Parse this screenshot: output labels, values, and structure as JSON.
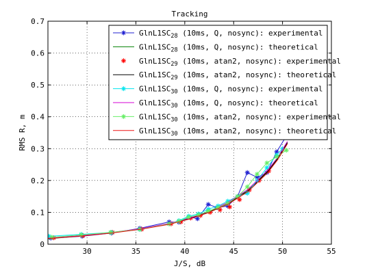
{
  "chart_data": {
    "type": "line",
    "title": "Tracking",
    "xlabel": "J/S, dB",
    "ylabel": "RMS R, m",
    "xlim": [
      26,
      55
    ],
    "ylim": [
      0,
      0.7
    ],
    "xticks": [
      30,
      35,
      40,
      45,
      50,
      55
    ],
    "yticks": [
      0,
      0.1,
      0.2,
      0.3,
      0.4,
      0.5,
      0.6,
      0.7
    ],
    "xtick_labels": [
      "30",
      "35",
      "40",
      "45",
      "50",
      "55"
    ],
    "ytick_labels": [
      "0",
      "0.1",
      "0.2",
      "0.3",
      "0.4",
      "0.5",
      "0.6",
      "0.7"
    ],
    "grid": true,
    "legend_position": "top-right",
    "series": [
      {
        "name_main": "GlnL1SC",
        "name_sub": "28",
        "name_rest": " (10ms, Q, nosync): experimental",
        "color": "#1f1fd1",
        "marker": "star",
        "line": true,
        "x": [
          26.3,
          29.5,
          32.5,
          35.4,
          38.4,
          39.4,
          40.5,
          41.3,
          42.4,
          43.3,
          44.4,
          45.4,
          46.4,
          47.4,
          48.4,
          49.4,
          50.4
        ],
        "y": [
          0.019,
          0.025,
          0.035,
          0.05,
          0.07,
          0.069,
          0.085,
          0.08,
          0.125,
          0.115,
          0.12,
          0.15,
          0.225,
          0.21,
          0.225,
          0.29,
          0.34
        ]
      },
      {
        "name_main": "GlnL1SC",
        "name_sub": "28",
        "name_rest": " (10ms, Q, nosync): theoretical",
        "color": "#008000",
        "marker": "none",
        "line": true,
        "x": [
          26.0,
          29.5,
          32.5,
          35.5,
          38.5,
          40.5,
          42.5,
          44.5,
          46.5,
          48.5,
          49.5,
          50.5
        ],
        "y": [
          0.017,
          0.026,
          0.036,
          0.048,
          0.064,
          0.081,
          0.102,
          0.13,
          0.17,
          0.23,
          0.27,
          0.32
        ]
      },
      {
        "name_main": "GlnL1SC",
        "name_sub": "29",
        "name_rest": " (10ms, atan2, nosync): experimental",
        "color": "#ff0000",
        "marker": "star",
        "line": false,
        "x": [
          26.6,
          29.6,
          32.6,
          35.6,
          38.6,
          39.6,
          40.6,
          41.6,
          42.6,
          43.6,
          44.6,
          45.6,
          46.6,
          47.6,
          48.6
        ],
        "y": [
          0.02,
          0.027,
          0.037,
          0.047,
          0.064,
          0.07,
          0.082,
          0.09,
          0.1,
          0.108,
          0.117,
          0.14,
          0.17,
          0.2,
          0.23
        ]
      },
      {
        "name_main": "GlnL1SC",
        "name_sub": "29",
        "name_rest": " (10ms, atan2, nosync): theoretical",
        "color": "#000000",
        "marker": "none",
        "line": true,
        "x": [
          26.0,
          29.5,
          32.5,
          35.5,
          38.5,
          40.5,
          42.5,
          44.5,
          46.5,
          48.5,
          49.5,
          50.5
        ],
        "y": [
          0.018,
          0.026,
          0.036,
          0.048,
          0.064,
          0.08,
          0.1,
          0.128,
          0.168,
          0.228,
          0.268,
          0.318
        ]
      },
      {
        "name_main": "GlnL1SC",
        "name_sub": "30",
        "name_rest": " (10ms, Q, nosync): experimental",
        "color": "#00e5ee",
        "marker": "star",
        "line": true,
        "x": [
          26.1,
          29.4,
          32.5,
          35.4,
          38.4,
          39.4,
          40.4,
          41.4,
          42.4,
          43.4,
          44.4,
          45.4,
          46.4,
          47.4,
          48.4,
          49.4,
          50.0
        ],
        "y": [
          0.025,
          0.031,
          0.037,
          0.046,
          0.064,
          0.074,
          0.088,
          0.095,
          0.11,
          0.12,
          0.135,
          0.15,
          0.16,
          0.2,
          0.24,
          0.28,
          0.3
        ]
      },
      {
        "name_main": "GlnL1SC",
        "name_sub": "30",
        "name_rest": " (10ms, Q, nosync): theoretical",
        "color": "#d400d4",
        "marker": "none",
        "line": true,
        "x": [
          26.0,
          29.5,
          32.5,
          35.5,
          38.5,
          40.5,
          42.5,
          44.5,
          46.5,
          48.5,
          49.5,
          50.5
        ],
        "y": [
          0.019,
          0.027,
          0.037,
          0.049,
          0.066,
          0.082,
          0.104,
          0.133,
          0.173,
          0.233,
          0.273,
          0.323
        ]
      },
      {
        "name_main": "GlnL1SC",
        "name_sub": "30",
        "name_rest": " (10ms, atan2, nosync): experimental",
        "color": "#66ee66",
        "marker": "star",
        "line": true,
        "x": [
          26.4,
          29.4,
          32.4,
          35.4,
          38.4,
          39.4,
          40.4,
          41.4,
          42.4,
          43.4,
          44.4,
          45.4,
          46.4,
          47.4,
          48.4,
          49.4,
          50.4
        ],
        "y": [
          0.022,
          0.029,
          0.037,
          0.047,
          0.064,
          0.072,
          0.085,
          0.092,
          0.104,
          0.115,
          0.128,
          0.15,
          0.18,
          0.22,
          0.255,
          0.275,
          0.295
        ]
      },
      {
        "name_main": "GlnL1SC",
        "name_sub": "30",
        "name_rest": " (10ms, atan2, nosync): theoretical",
        "color": "#ee1111",
        "marker": "none",
        "line": true,
        "x": [
          26.0,
          29.5,
          32.5,
          35.5,
          38.5,
          40.5,
          42.5,
          44.5,
          46.5,
          48.5,
          49.5,
          50.5
        ],
        "y": [
          0.018,
          0.026,
          0.035,
          0.047,
          0.063,
          0.079,
          0.1,
          0.127,
          0.166,
          0.225,
          0.265,
          0.315
        ]
      }
    ]
  }
}
